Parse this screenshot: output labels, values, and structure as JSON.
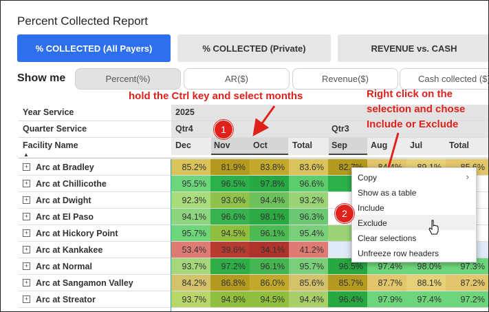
{
  "report": {
    "title": "Percent Collected Report"
  },
  "tabs": [
    {
      "label": "% COLLECTED (All Payers)",
      "active": true
    },
    {
      "label": "% COLLECTED (Private)",
      "active": false
    },
    {
      "label": "REVENUE vs. CASH",
      "active": false
    }
  ],
  "showme": {
    "label": "Show me",
    "chips": [
      "Percent(%)",
      "AR($)",
      "Revenue($)",
      "Cash collected ($)"
    ]
  },
  "annotations": {
    "ctrl_note": "hold the Ctrl key and select months",
    "right_click_note": [
      "Right click on the",
      "selection and chose",
      "Include or Exclude"
    ],
    "badge1": "1",
    "badge2": "2"
  },
  "matrix": {
    "year_label": "Year Service",
    "quarter_label": "Quarter Service",
    "facility_label": "Facility Name",
    "year": "2025",
    "qtr4": "Qtr4",
    "qtr3": "Qtr3",
    "months": [
      "Dec",
      "Nov",
      "Oct",
      "Total",
      "Sep",
      "Aug",
      "Jul",
      "Total"
    ],
    "rows": [
      {
        "name": "Arc at Bradley",
        "values": [
          "85.2%",
          "81.9%",
          "83.8%",
          "83.6%",
          "82.7%",
          "84.4%",
          "89.1%",
          "85.6%"
        ]
      },
      {
        "name": "Arc at Chillicothe",
        "values": [
          "95.5%",
          "96.5%",
          "97.8%",
          "96.6%",
          "96.",
          "",
          "",
          ""
        ]
      },
      {
        "name": "Arc at Dwight",
        "values": [
          "92.3%",
          "93.0%",
          "94.4%",
          "93.2%",
          "",
          "",
          "",
          ""
        ]
      },
      {
        "name": "Arc at El Paso",
        "values": [
          "94.1%",
          "96.6%",
          "98.1%",
          "96.3%",
          "",
          "",
          "",
          ""
        ]
      },
      {
        "name": "Arc at Hickory Point",
        "values": [
          "95.7%",
          "94.5%",
          "96.1%",
          "95.4%",
          "93.",
          "",
          "",
          ""
        ]
      },
      {
        "name": "Arc at Kankakee",
        "values": [
          "53.4%",
          "39.6%",
          "34.1%",
          "41.2%",
          "",
          "",
          "",
          ""
        ]
      },
      {
        "name": "Arc at Normal",
        "values": [
          "93.7%",
          "97.2%",
          "96.1%",
          "95.7%",
          "96.5%",
          "97.4%",
          "98.0%",
          "97.3%"
        ]
      },
      {
        "name": "Arc at Sangamon Valley",
        "values": [
          "84.2%",
          "86.8%",
          "86.0%",
          "85.6%",
          "85.7%",
          "87.7%",
          "88.1%",
          "87.2%"
        ]
      },
      {
        "name": "Arc at Streator",
        "values": [
          "93.7%",
          "94.9%",
          "94.5%",
          "94.4%",
          "96.4%",
          "97.9%",
          "97.4%",
          "97.2%"
        ]
      }
    ]
  },
  "context_menu": {
    "items": [
      "Copy",
      "Show as a table",
      "Include",
      "Exclude",
      "Clear selections",
      "Unfreeze row headers"
    ]
  },
  "colors": {
    "accent": "#2e6ff0",
    "annotation_red": "#e0201b"
  }
}
